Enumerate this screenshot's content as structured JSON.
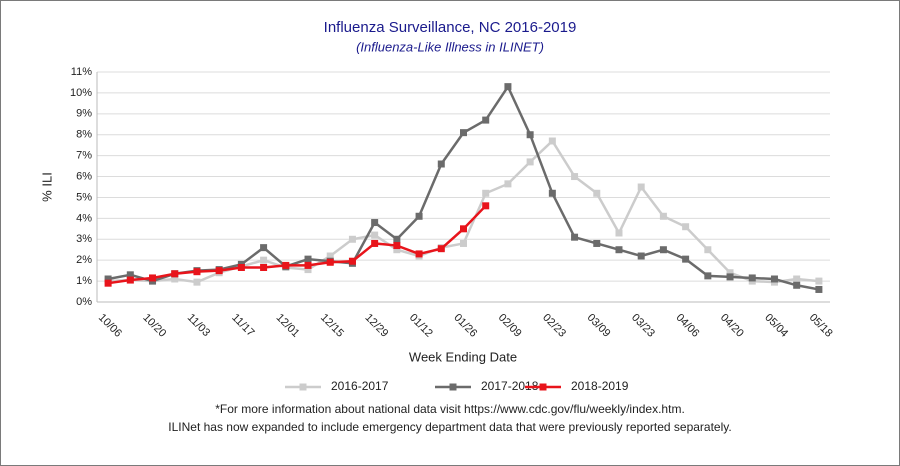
{
  "chart_data": {
    "type": "line",
    "title": "Influenza Surveillance, NC 2016-2019",
    "subtitle": "(Influenza-Like Illness in ILINET)",
    "y_label": "% ILI",
    "x_label": "Week Ending Date",
    "categories": [
      "10/06",
      null,
      "10/20",
      null,
      "11/03",
      null,
      "11/17",
      null,
      "12/01",
      null,
      "12/15",
      null,
      "12/29",
      null,
      "01/12",
      null,
      "01/26",
      null,
      "02/09",
      null,
      "02/23",
      null,
      "03/09",
      null,
      "03/23",
      null,
      "04/06",
      null,
      "04/20",
      null,
      "05/04",
      null,
      "05/18"
    ],
    "series": [
      {
        "name": "2016-2017",
        "color": "#cccccc",
        "values": [
          1.0,
          1.05,
          1.0,
          1.1,
          0.95,
          1.4,
          1.7,
          2.0,
          1.65,
          1.55,
          2.2,
          3.0,
          3.2,
          2.5,
          2.2,
          2.6,
          2.8,
          5.2,
          5.65,
          6.7,
          7.7,
          6.0,
          5.2,
          3.3,
          5.5,
          4.1,
          3.6,
          2.5,
          1.4,
          1.0,
          0.95,
          1.1,
          1.0
        ]
      },
      {
        "name": "2017-2018",
        "color": "#6b6b6b",
        "values": [
          1.1,
          1.3,
          1.0,
          1.35,
          1.5,
          1.55,
          1.8,
          2.6,
          1.7,
          2.05,
          1.95,
          1.85,
          3.8,
          3.0,
          4.1,
          6.6,
          8.1,
          8.7,
          10.3,
          8.0,
          5.2,
          3.1,
          2.8,
          2.5,
          2.2,
          2.5,
          2.05,
          1.25,
          1.2,
          1.15,
          1.1,
          0.8,
          0.6
        ]
      },
      {
        "name": "2018-2019",
        "color": "#e8141b",
        "values": [
          0.9,
          1.05,
          1.15,
          1.35,
          1.45,
          1.5,
          1.65,
          1.65,
          1.75,
          1.75,
          1.9,
          1.95,
          2.8,
          2.7,
          2.3,
          2.55,
          3.5,
          4.6,
          null,
          null,
          null,
          null,
          null,
          null,
          null,
          null,
          null,
          null,
          null,
          null,
          null,
          null,
          null
        ]
      }
    ],
    "ylim": [
      0,
      11
    ],
    "yticks": [
      {
        "value": 0,
        "label": "0%"
      },
      {
        "value": 1,
        "label": "1%"
      },
      {
        "value": 2,
        "label": "2%"
      },
      {
        "value": 3,
        "label": "3%"
      },
      {
        "value": 4,
        "label": "4%"
      },
      {
        "value": 5,
        "label": "5%"
      },
      {
        "value": 6,
        "label": "6%"
      },
      {
        "value": 7,
        "label": "7%"
      },
      {
        "value": 8,
        "label": "8%"
      },
      {
        "value": 9,
        "label": "9%"
      },
      {
        "value": 10,
        "label": "10%"
      },
      {
        "value": 11,
        "label": "11%"
      }
    ],
    "grid": true,
    "legend": "bottom",
    "notes": [
      "*For more information about national data visit https://www.cdc.gov/flu/weekly/index.htm.",
      "ILINet has now expanded to include emergency department data that were previously reported separately."
    ]
  }
}
